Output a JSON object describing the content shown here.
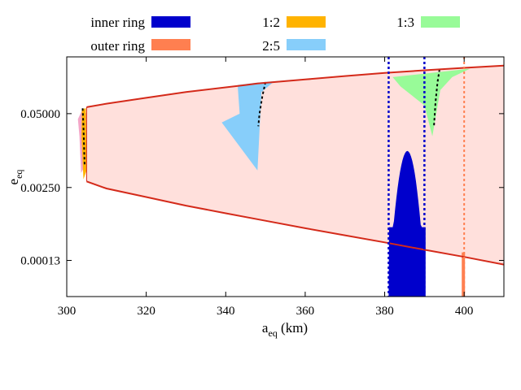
{
  "chart_data": {
    "type": "area",
    "xlabel": "a",
    "xlabel_sub": "eq",
    "xlabel_unit": " (km)",
    "ylabel": "e",
    "ylabel_sub": "eq",
    "yscale": "log",
    "xlim": [
      300,
      410
    ],
    "ylim": [
      3e-05,
      0.5
    ],
    "x_ticks": [
      "300",
      "320",
      "340",
      "360",
      "380",
      "400"
    ],
    "x_tick_values": [
      300,
      320,
      340,
      360,
      380,
      400
    ],
    "y_ticks": [
      "0.05000",
      "0.00250",
      "0.00013"
    ],
    "y_tick_values": [
      0.05,
      0.0025,
      0.00013
    ],
    "legend": [
      {
        "label": "inner ring",
        "color": "#0000cc"
      },
      {
        "label": "outer ring",
        "color": "#ff7f50"
      },
      {
        "label": "1:2",
        "color": "#ffb300"
      },
      {
        "label": "2:5",
        "color": "#87cefa"
      },
      {
        "label": "1:3",
        "color": "#98fb98"
      }
    ],
    "colors": {
      "band_fill": "#ffe0dc",
      "boundary": "#d42a1a",
      "inner_ring": "#0000cc",
      "outer_ring": "#ff7f50",
      "res12": "#ffb300",
      "res25": "#87cefa",
      "res13": "#98fb98",
      "pink_patch": "#f4a6c8"
    },
    "series": [
      {
        "name": "upper boundary",
        "x": [
          305,
          310,
          320,
          330,
          345,
          348,
          360,
          370,
          380,
          390,
          400,
          410
        ],
        "y": [
          0.065,
          0.075,
          0.095,
          0.12,
          0.16,
          0.17,
          0.2,
          0.23,
          0.26,
          0.29,
          0.32,
          0.35
        ]
      },
      {
        "name": "lower boundary",
        "x": [
          305,
          310,
          320,
          330,
          340,
          350,
          360,
          370,
          380,
          390,
          400,
          410
        ],
        "y": [
          0.0032,
          0.0024,
          0.0017,
          0.0012,
          0.00088,
          0.00065,
          0.00048,
          0.00036,
          0.00027,
          0.0002,
          0.00015,
          0.00011
        ]
      },
      {
        "name": "inner ring vertical lines",
        "x": [
          381,
          390
        ]
      },
      {
        "name": "outer ring vertical line",
        "x": [
          400
        ]
      }
    ]
  }
}
